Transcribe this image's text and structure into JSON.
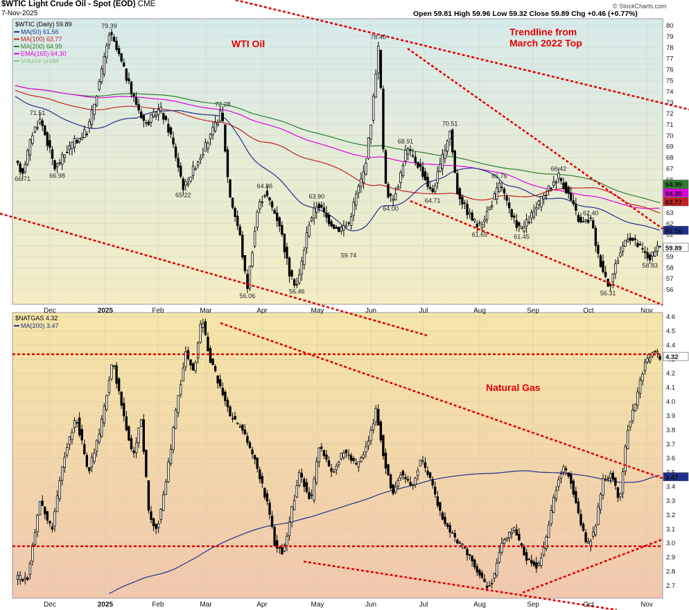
{
  "header": {
    "title": "$WTIC Light Crude Oil - Spot (EOD)",
    "exchange": "CME",
    "date": "7-Nov-2025",
    "ohlc_text": "Open 59.81 High 59.96 Low 59.32 Close 59.89 Chg +0.46 (+0.77%)",
    "watermark": "© StockCharts.com"
  },
  "colors": {
    "oil_bg_top": "#d8ecec",
    "oil_bg_bottom": "#f4ecc4",
    "gas_bg_top": "#f4e4a8",
    "gas_bg_bottom": "#f2c9ae",
    "ma50": "#1f2f8a",
    "ma100": "#c42020",
    "ma200": "#2e7d2e",
    "ema165": "#e000e0",
    "trend": "#e00000",
    "candle": "#000000"
  },
  "chart_data": [
    {
      "type": "candlestick",
      "title": "$WTIC (Daily) 59.89",
      "annotation": "WTI Oil",
      "trend_annotation": "Trendline from March 2022 Top",
      "x_labels": [
        "Dec",
        "2025",
        "Feb",
        "Mar",
        "Apr",
        "May",
        "Jun",
        "Jul",
        "Aug",
        "Sep",
        "Oct",
        "Nov"
      ],
      "yticks": [
        56,
        57,
        58,
        59,
        60,
        61,
        62,
        63,
        64,
        65,
        66,
        67,
        68,
        69,
        70,
        71,
        72,
        73,
        74,
        75,
        76,
        77,
        78,
        79,
        80
      ],
      "ylim": [
        54.8,
        80.4
      ],
      "legend": [
        {
          "name": "MA(50) 61.56",
          "color": "#1f2f8a"
        },
        {
          "name": "MA(100) 63.77",
          "color": "#c42020"
        },
        {
          "name": "MA(200) 64.99",
          "color": "#2e7d2e"
        },
        {
          "name": "EMA(165) 64.30",
          "color": "#e000e0"
        },
        {
          "name": "Volume undef",
          "color": "#88bb88"
        }
      ],
      "last_value_tags": [
        "64.99",
        "64.30",
        "63.77",
        "61.56",
        "59.89"
      ],
      "point_labels": [
        {
          "text": "71.51",
          "x": "mid-Nov 2024",
          "y": 71.51
        },
        {
          "text": "66.71",
          "x": "early Nov 2024",
          "y": 66.71
        },
        {
          "text": "66.98",
          "x": "late Nov 2024",
          "y": 66.98
        },
        {
          "text": "79.39",
          "x": "mid-Jan 2025",
          "y": 79.39
        },
        {
          "text": "65.22",
          "x": "early Mar 2025",
          "y": 65.22
        },
        {
          "text": "72.28",
          "x": "early Apr 2025",
          "y": 72.28
        },
        {
          "text": "56.06",
          "x": "early Apr 2025",
          "y": 56.06
        },
        {
          "text": "64.86",
          "x": "mid-Apr 2025",
          "y": 64.86
        },
        {
          "text": "56.46",
          "x": "early May 2025",
          "y": 56.46
        },
        {
          "text": "63.90",
          "x": "mid-May 2025",
          "y": 63.9
        },
        {
          "text": "59.74",
          "x": "late May 2025",
          "y": 59.74
        },
        {
          "text": "78.40",
          "x": "mid-Jun 2025",
          "y": 78.4
        },
        {
          "text": "64.00",
          "x": "late Jun 2025",
          "y": 64.0
        },
        {
          "text": "68.91",
          "x": "early Jul 2025",
          "y": 68.91
        },
        {
          "text": "64.71",
          "x": "mid-Jul 2025",
          "y": 64.71
        },
        {
          "text": "70.51",
          "x": "end Jul 2025",
          "y": 70.51
        },
        {
          "text": "61.65",
          "x": "mid-Aug 2025",
          "y": 61.65
        },
        {
          "text": "65.76",
          "x": "end Aug 2025",
          "y": 65.76
        },
        {
          "text": "61.45",
          "x": "early Sep 2025",
          "y": 61.45
        },
        {
          "text": "66.42",
          "x": "late Sep 2025",
          "y": 66.42
        },
        {
          "text": "62.40",
          "x": "mid-Oct 2025",
          "y": 62.4
        },
        {
          "text": "56.31",
          "x": "mid-Oct 2025",
          "y": 56.31
        },
        {
          "text": "58.83",
          "x": "early Nov 2025",
          "y": 58.83
        }
      ]
    },
    {
      "type": "candlestick",
      "title": "$NATGAS 4.32",
      "annotation": "Natural Gas",
      "x_labels": [
        "Dec",
        "2025",
        "Feb",
        "Mar",
        "Apr",
        "May",
        "Jun",
        "Jul",
        "Aug",
        "Sep",
        "Oct",
        "Nov"
      ],
      "yticks": [
        2.7,
        2.8,
        2.9,
        3.0,
        3.1,
        3.2,
        3.3,
        3.4,
        3.5,
        3.6,
        3.7,
        3.8,
        3.9,
        4.0,
        4.1,
        4.2,
        4.3,
        4.4,
        4.5,
        4.6
      ],
      "ylim": [
        2.62,
        4.6
      ],
      "legend": [
        {
          "name": "MA(200) 3.47",
          "color": "#1f2f8a"
        }
      ],
      "last_value_tags": [
        "4.32",
        "3.47"
      ]
    }
  ]
}
